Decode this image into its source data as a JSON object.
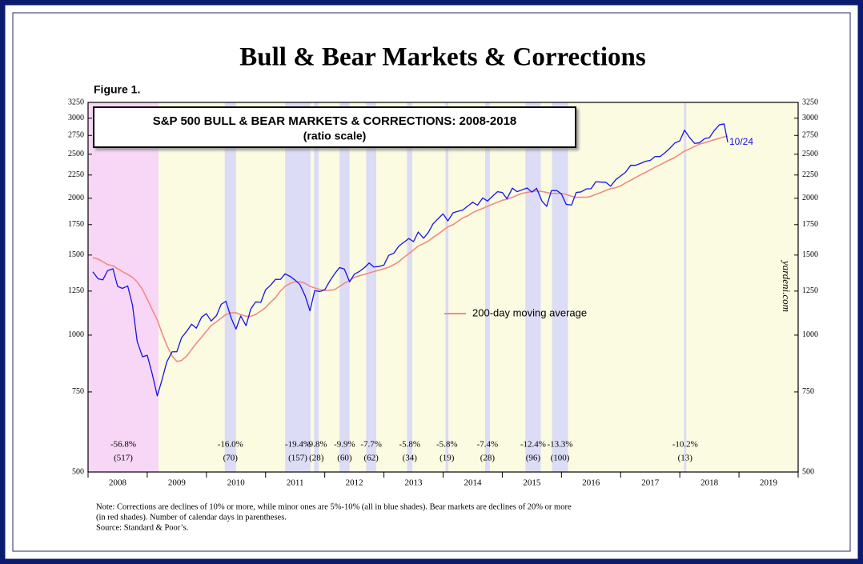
{
  "chart_data": {
    "type": "line",
    "title": "Bull & Bear Markets & Corrections",
    "figure_label": "Figure 1.",
    "box_title": "S&P 500 BULL & BEAR MARKETS & CORRECTIONS: 2008-2018",
    "box_subtitle": "(ratio scale)",
    "last_date_label": "10/24",
    "source_mark": "yardeni.com",
    "notes": [
      "Note: Corrections are declines of 10% or more, while minor ones are 5%-10% (all in blue shades).  Bear markets are declines of 20% or more",
      "(in red shades). Number of calendar days in parentheses.",
      "Source: Standard & Poor’s."
    ],
    "log_scale": true,
    "xlim": [
      2008,
      2020
    ],
    "xticks": [
      2008,
      2009,
      2010,
      2011,
      2012,
      2013,
      2014,
      2015,
      2016,
      2017,
      2018,
      2019,
      2020
    ],
    "years": [
      2008,
      2009,
      2010,
      2011,
      2012,
      2013,
      2014,
      2015,
      2016,
      2017,
      2018,
      2019
    ],
    "ylim": [
      500,
      3250
    ],
    "yticks": [
      500,
      750,
      1000,
      1250,
      1500,
      1750,
      2000,
      2250,
      2500,
      2750,
      3000,
      3250
    ],
    "background_color": "#fbfbe2",
    "x": [
      2008.08,
      2008.17,
      2008.25,
      2008.33,
      2008.42,
      2008.5,
      2008.58,
      2008.67,
      2008.75,
      2008.83,
      2008.92,
      2009,
      2009.08,
      2009.17,
      2009.25,
      2009.33,
      2009.42,
      2009.5,
      2009.58,
      2009.67,
      2009.75,
      2009.83,
      2009.92,
      2010,
      2010.08,
      2010.17,
      2010.25,
      2010.33,
      2010.42,
      2010.5,
      2010.58,
      2010.67,
      2010.75,
      2010.83,
      2010.92,
      2011,
      2011.08,
      2011.17,
      2011.25,
      2011.33,
      2011.42,
      2011.5,
      2011.58,
      2011.67,
      2011.75,
      2011.83,
      2011.92,
      2012,
      2012.08,
      2012.17,
      2012.25,
      2012.33,
      2012.42,
      2012.5,
      2012.58,
      2012.67,
      2012.75,
      2012.83,
      2012.92,
      2013,
      2013.08,
      2013.17,
      2013.25,
      2013.33,
      2013.42,
      2013.5,
      2013.58,
      2013.67,
      2013.75,
      2013.83,
      2013.92,
      2014,
      2014.08,
      2014.17,
      2014.25,
      2014.33,
      2014.42,
      2014.5,
      2014.58,
      2014.67,
      2014.75,
      2014.83,
      2014.92,
      2015,
      2015.08,
      2015.17,
      2015.25,
      2015.33,
      2015.42,
      2015.5,
      2015.58,
      2015.67,
      2015.75,
      2015.83,
      2015.92,
      2016,
      2016.08,
      2016.17,
      2016.25,
      2016.33,
      2016.42,
      2016.5,
      2016.58,
      2016.67,
      2016.75,
      2016.83,
      2016.92,
      2017,
      2017.08,
      2017.17,
      2017.25,
      2017.33,
      2017.42,
      2017.5,
      2017.58,
      2017.67,
      2017.75,
      2017.83,
      2017.92,
      2018,
      2018.08,
      2018.17,
      2018.25,
      2018.33,
      2018.42,
      2018.5,
      2018.58,
      2018.67,
      2018.75,
      2018.81
    ],
    "series": [
      {
        "name": "S&P 500",
        "color": "#1414e6",
        "width": 1.3,
        "values": [
          1378,
          1330,
          1323,
          1386,
          1400,
          1280,
          1267,
          1283,
          1166,
          969,
          896,
          903,
          826,
          735,
          798,
          873,
          919,
          919,
          987,
          1021,
          1057,
          1036,
          1096,
          1115,
          1074,
          1104,
          1169,
          1187,
          1089,
          1031,
          1102,
          1049,
          1141,
          1183,
          1181,
          1258,
          1286,
          1327,
          1326,
          1364,
          1345,
          1321,
          1292,
          1219,
          1131,
          1253,
          1247,
          1258,
          1312,
          1366,
          1408,
          1398,
          1310,
          1362,
          1379,
          1407,
          1441,
          1412,
          1416,
          1426,
          1498,
          1515,
          1569,
          1598,
          1631,
          1606,
          1686,
          1633,
          1682,
          1757,
          1806,
          1848,
          1783,
          1859,
          1872,
          1884,
          1924,
          1960,
          1931,
          2003,
          1972,
          2018,
          2068,
          2059,
          1995,
          2105,
          2068,
          2086,
          2107,
          2063,
          2104,
          1972,
          1920,
          2079,
          2080,
          2044,
          1940,
          1932,
          2060,
          2065,
          2097,
          2099,
          2174,
          2171,
          2168,
          2126,
          2199,
          2239,
          2279,
          2364,
          2363,
          2384,
          2412,
          2423,
          2470,
          2472,
          2519,
          2575,
          2648,
          2674,
          2824,
          2714,
          2641,
          2648,
          2705,
          2718,
          2816,
          2902,
          2914,
          2656
        ]
      },
      {
        "name": "200-day moving average",
        "color": "#f28a80",
        "width": 1.6,
        "values": [
          1480,
          1470,
          1450,
          1430,
          1420,
          1400,
          1380,
          1360,
          1340,
          1310,
          1260,
          1200,
          1140,
          1080,
          1010,
          950,
          900,
          875,
          880,
          900,
          930,
          960,
          990,
          1020,
          1050,
          1070,
          1090,
          1110,
          1120,
          1120,
          1110,
          1100,
          1100,
          1110,
          1130,
          1150,
          1180,
          1210,
          1250,
          1280,
          1300,
          1310,
          1310,
          1300,
          1280,
          1270,
          1260,
          1255,
          1255,
          1260,
          1280,
          1300,
          1320,
          1340,
          1350,
          1360,
          1370,
          1380,
          1390,
          1400,
          1410,
          1430,
          1450,
          1480,
          1510,
          1540,
          1570,
          1590,
          1610,
          1640,
          1670,
          1700,
          1730,
          1750,
          1780,
          1810,
          1830,
          1860,
          1880,
          1900,
          1920,
          1940,
          1960,
          1980,
          1990,
          2010,
          2030,
          2050,
          2060,
          2070,
          2075,
          2070,
          2060,
          2050,
          2050,
          2050,
          2040,
          2020,
          2010,
          2010,
          2010,
          2020,
          2040,
          2060,
          2080,
          2100,
          2110,
          2130,
          2160,
          2190,
          2220,
          2250,
          2280,
          2310,
          2340,
          2370,
          2400,
          2430,
          2460,
          2500,
          2540,
          2570,
          2600,
          2630,
          2650,
          2670,
          2690,
          2710,
          2730,
          2740
        ]
      }
    ],
    "shade_colors": {
      "bear": "#f8d6f6",
      "correction": "#dcdcf6"
    },
    "shades": [
      {
        "kind": "bear",
        "start": 2007.77,
        "end": 2009.19,
        "label": "-56.8%",
        "days": "(517)"
      },
      {
        "kind": "correction",
        "start": 2010.31,
        "end": 2010.5,
        "label": "-16.0%",
        "days": "(70)"
      },
      {
        "kind": "correction",
        "start": 2011.33,
        "end": 2011.76,
        "label": "-19.4%",
        "days": "(157)"
      },
      {
        "kind": "correction",
        "start": 2011.82,
        "end": 2011.9,
        "label": "-9.8%",
        "days": "(28)"
      },
      {
        "kind": "correction",
        "start": 2012.25,
        "end": 2012.42,
        "label": "-9.9%",
        "days": "(60)"
      },
      {
        "kind": "correction",
        "start": 2012.7,
        "end": 2012.87,
        "label": "-7.7%",
        "days": "(62)"
      },
      {
        "kind": "correction",
        "start": 2013.39,
        "end": 2013.48,
        "label": "-5.8%",
        "days": "(34)"
      },
      {
        "kind": "correction",
        "start": 2014.04,
        "end": 2014.09,
        "label": "-5.8%",
        "days": "(19)"
      },
      {
        "kind": "correction",
        "start": 2014.71,
        "end": 2014.79,
        "label": "-7.4%",
        "days": "(28)"
      },
      {
        "kind": "correction",
        "start": 2015.39,
        "end": 2015.65,
        "label": "-12.4%",
        "days": "(96)"
      },
      {
        "kind": "correction",
        "start": 2015.84,
        "end": 2016.11,
        "label": "-13.3%",
        "days": "(100)"
      },
      {
        "kind": "correction",
        "start": 2018.07,
        "end": 2018.11,
        "label": "-10.2%",
        "days": "(13)"
      }
    ]
  }
}
